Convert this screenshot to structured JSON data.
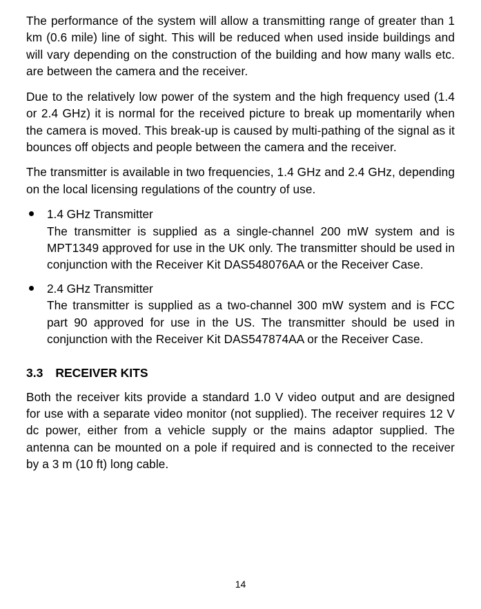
{
  "paragraphs": {
    "p1": "The performance of the system will allow a transmitting range of greater than 1 km (0.6 mile) line of sight. This will be reduced when used inside buildings and will vary depending on the construction of the building and how many walls etc. are between the camera and the receiver.",
    "p2": "Due to the relatively low power of the system and the high frequency used (1.4 or 2.4 GHz) it is normal for the received picture to break up momentarily when the camera is moved. This break-up is caused by multi-pathing of the signal as it bounces off objects and people between the camera and the receiver.",
    "p3": "The transmitter is available in two frequencies, 1.4 GHz and 2.4 GHz, depending on the local licensing regulations of the country of use."
  },
  "bullets": [
    {
      "title": "1.4 GHz Transmitter",
      "body": "The transmitter is supplied as a single-channel 200 mW system and is MPT1349 approved for use in the UK only. The transmitter should be used in conjunction with the Receiver Kit DAS548076AA or the Receiver Case."
    },
    {
      "title": "2.4 GHz Transmitter",
      "body": "The transmitter is supplied as a two-channel 300 mW system and is FCC part 90 approved for use in the US. The transmitter should be used in conjunction with the Receiver Kit DAS547874AA or the Receiver Case."
    }
  ],
  "section": {
    "number": "3.3",
    "title": "RECEIVER KITS",
    "body": "Both the receiver kits provide a standard 1.0 V video output and are designed for use with a separate video monitor (not supplied). The receiver requires 12 V dc power, either from a vehicle supply or the mains adaptor supplied. The antenna can be mounted on a pole if required and is connected to the receiver by  a 3 m (10 ft) long cable."
  },
  "page_number": "14"
}
